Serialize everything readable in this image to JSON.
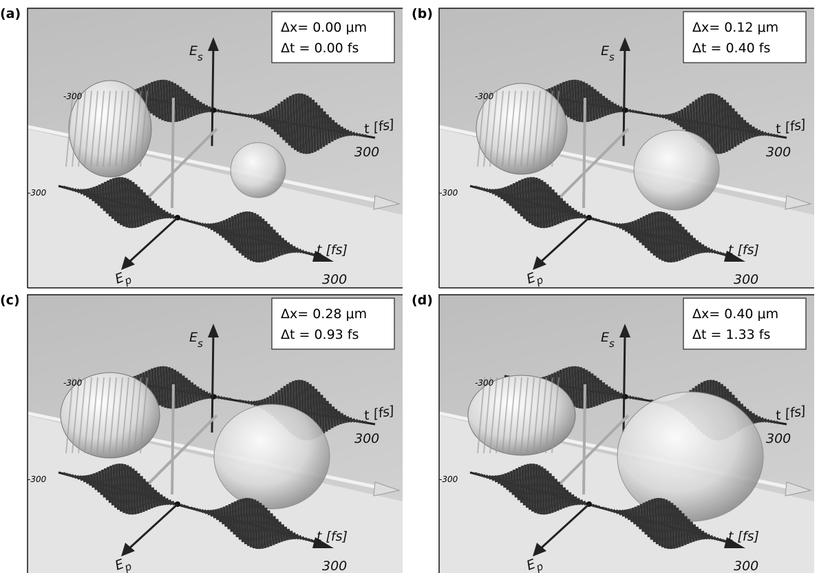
{
  "panels": [
    {
      "label": "(a)",
      "dx": "Δx= 0.00 μm",
      "dt": "Δt = 0.00 fs",
      "es_axis": {
        "symbol": "E",
        "subscript": "s"
      },
      "ep_axis": {
        "symbol": "E",
        "subscript": "p"
      },
      "upper_start": "-300",
      "upper_t_label": "t [fs]",
      "upper_end": "300",
      "lower_start": "-300",
      "lower_t_label": "t [fs]",
      "lower_end": "300"
    },
    {
      "label": "(b)",
      "dx": "Δx= 0.12 μm",
      "dt": "Δt = 0.40 fs",
      "es_axis": {
        "symbol": "E",
        "subscript": "s"
      },
      "ep_axis": {
        "symbol": "E",
        "subscript": "p"
      },
      "upper_start": "-300",
      "upper_t_label": "t [fs]",
      "upper_end": "300",
      "lower_start": "-300",
      "lower_t_label": "t [fs]",
      "lower_end": "300"
    },
    {
      "label": "(c)",
      "dx": "Δx= 0.28 μm",
      "dt": "Δt = 0.93 fs",
      "es_axis": {
        "symbol": "E",
        "subscript": "s"
      },
      "ep_axis": {
        "symbol": "E",
        "subscript": "p"
      },
      "upper_start": "-300",
      "upper_t_label": "t [fs]",
      "upper_end": "300",
      "lower_start": "-300",
      "lower_t_label": "t [fs]",
      "lower_end": "300"
    },
    {
      "label": "(d)",
      "dx": "Δx= 0.40 μm",
      "dt": "Δt = 1.33 fs",
      "es_axis": {
        "symbol": "E",
        "subscript": "s"
      },
      "ep_axis": {
        "symbol": "E",
        "subscript": "p"
      },
      "upper_start": "-300",
      "upper_t_label": "t [fs]",
      "upper_end": "300",
      "lower_start": "-300",
      "lower_t_label": "t [fs]",
      "lower_end": "300"
    }
  ]
}
